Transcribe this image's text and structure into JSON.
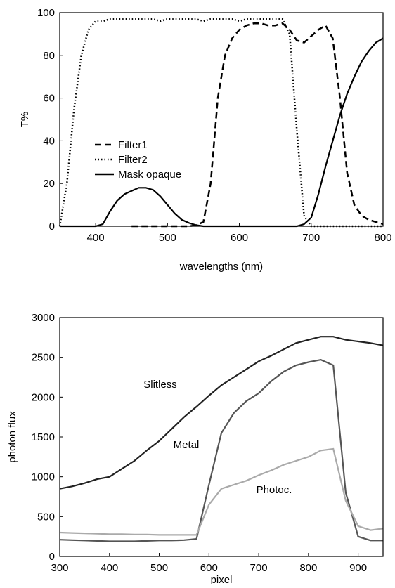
{
  "chart_data": [
    {
      "type": "line",
      "ylabel": "T%",
      "xlabel": "wavelengths (nm)",
      "xlim": [
        350,
        800
      ],
      "xticks": [
        400,
        500,
        600,
        700,
        800
      ],
      "ylim": [
        0,
        100
      ],
      "yticks": [
        0,
        20,
        40,
        60,
        80,
        100
      ],
      "legend": true,
      "x": [
        350,
        360,
        370,
        380,
        390,
        400,
        410,
        420,
        430,
        440,
        450,
        460,
        470,
        480,
        490,
        500,
        510,
        520,
        530,
        540,
        550,
        560,
        570,
        580,
        590,
        600,
        610,
        620,
        630,
        640,
        650,
        660,
        670,
        680,
        690,
        700,
        710,
        720,
        730,
        740,
        750,
        760,
        770,
        780,
        790,
        800
      ],
      "series": [
        {
          "name": "Filter1",
          "color": "#000000",
          "style": "dashed",
          "values": [
            null,
            null,
            null,
            null,
            null,
            null,
            null,
            null,
            null,
            null,
            0,
            0,
            0,
            0,
            0,
            0,
            0,
            0,
            0,
            0.5,
            2,
            20,
            60,
            80,
            88,
            92,
            94,
            95,
            95,
            94,
            94,
            95,
            92,
            87,
            86,
            89,
            92,
            94,
            88,
            60,
            25,
            10,
            5,
            3,
            2,
            1
          ]
        },
        {
          "name": "Filter2",
          "color": "#000000",
          "style": "dotted",
          "values": [
            0,
            20,
            55,
            80,
            92,
            96,
            96,
            97,
            97,
            97,
            97,
            97,
            97,
            97,
            96,
            97,
            97,
            97,
            97,
            97,
            96,
            97,
            97,
            97,
            97,
            96,
            97,
            97,
            97,
            97,
            97,
            97,
            90,
            45,
            5,
            0,
            0,
            0,
            0,
            0,
            0,
            0,
            0,
            0,
            0,
            0
          ]
        },
        {
          "name": "Mask opaque",
          "color": "#000000",
          "style": "solid",
          "values": [
            0,
            0,
            0,
            0,
            0,
            0,
            1,
            7,
            12,
            15,
            16.5,
            18,
            18,
            17,
            14,
            10,
            6,
            3,
            1.5,
            0.5,
            0,
            0,
            0,
            0,
            0,
            0,
            0,
            0,
            0,
            0,
            0,
            0,
            0,
            0,
            1,
            4,
            15,
            28,
            40,
            52,
            62,
            70,
            77,
            82,
            86,
            88
          ]
        }
      ]
    },
    {
      "type": "line",
      "ylabel": "photon flux",
      "xlabel": "pixel",
      "xlim": [
        300,
        950
      ],
      "xticks": [
        300,
        400,
        500,
        600,
        700,
        800,
        900
      ],
      "ylim": [
        0,
        3000
      ],
      "yticks": [
        0,
        500,
        1000,
        1500,
        2000,
        2500,
        3000
      ],
      "legend": false,
      "x": [
        300,
        325,
        350,
        375,
        400,
        425,
        450,
        475,
        500,
        525,
        550,
        575,
        600,
        625,
        650,
        675,
        700,
        725,
        750,
        775,
        800,
        825,
        850,
        875,
        900,
        925,
        950
      ],
      "series": [
        {
          "name": "Slitless",
          "color": "#222222",
          "style": "solid",
          "values": [
            850,
            880,
            920,
            970,
            1000,
            1100,
            1200,
            1330,
            1450,
            1600,
            1750,
            1880,
            2020,
            2150,
            2250,
            2350,
            2450,
            2520,
            2600,
            2680,
            2720,
            2760,
            2760,
            2720,
            2700,
            2680,
            2650
          ]
        },
        {
          "name": "Metal",
          "color": "#555555",
          "style": "solid",
          "values": [
            210,
            205,
            200,
            195,
            190,
            190,
            190,
            195,
            200,
            200,
            205,
            220,
            900,
            1550,
            1800,
            1950,
            2050,
            2200,
            2320,
            2400,
            2440,
            2470,
            2400,
            800,
            250,
            200,
            200
          ]
        },
        {
          "name": "Photoc.",
          "color": "#aaaaaa",
          "style": "solid",
          "values": [
            300,
            295,
            290,
            285,
            280,
            280,
            275,
            275,
            270,
            270,
            270,
            270,
            650,
            850,
            900,
            950,
            1020,
            1080,
            1150,
            1200,
            1250,
            1330,
            1350,
            700,
            380,
            330,
            350
          ]
        }
      ]
    }
  ]
}
